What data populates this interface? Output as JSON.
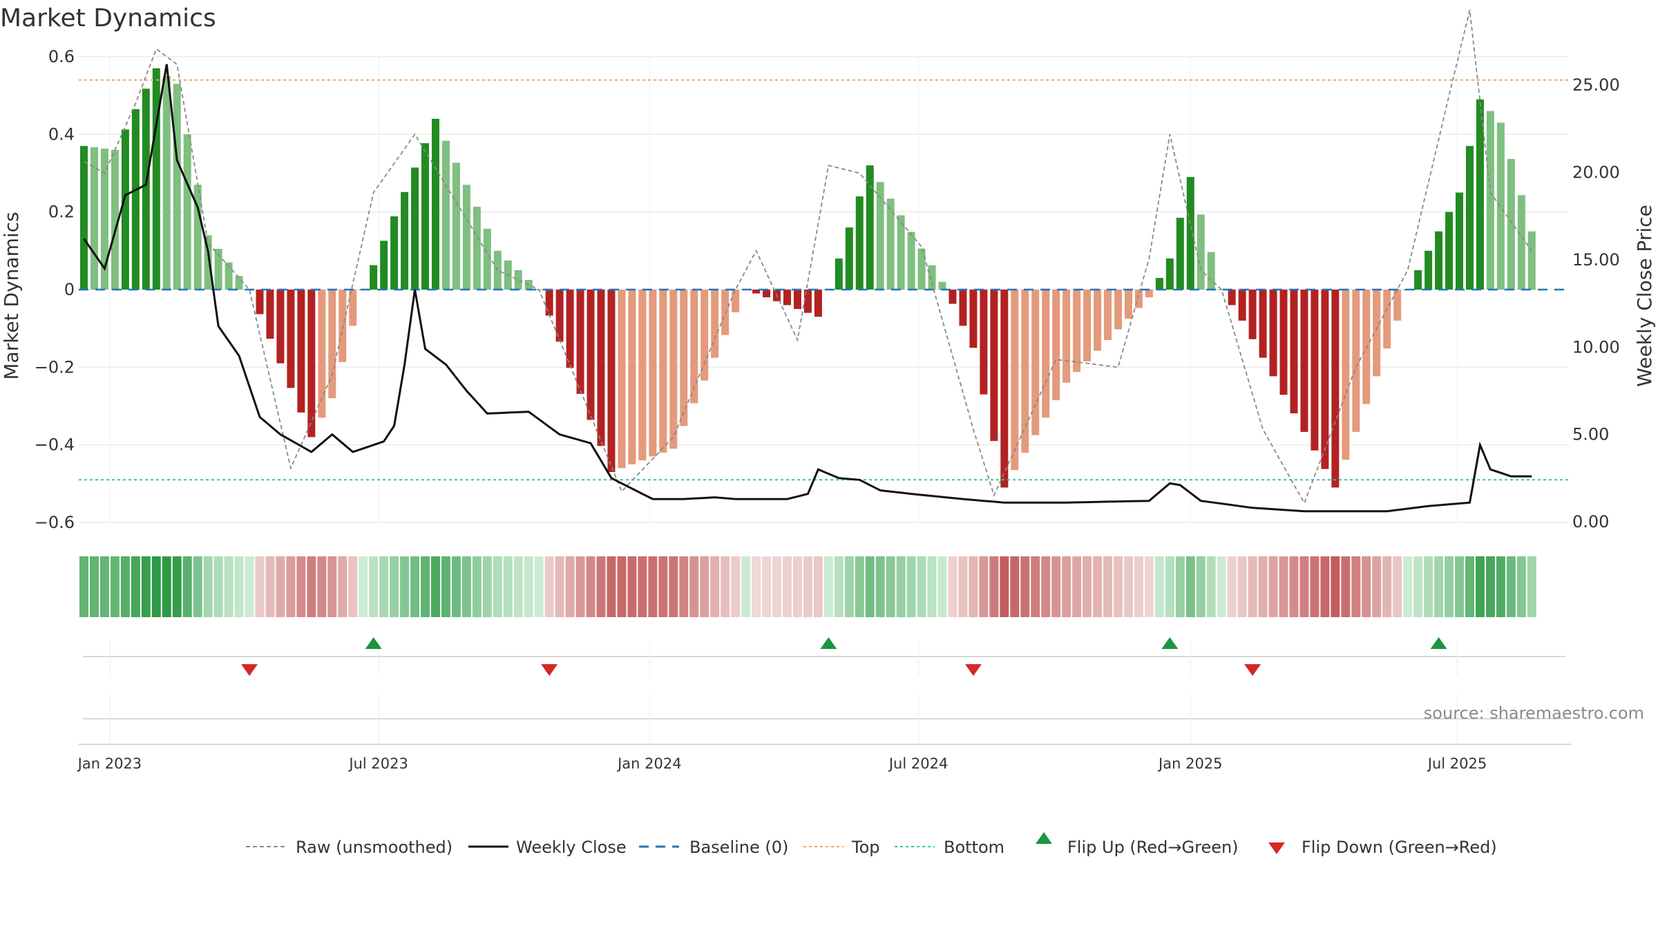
{
  "chart_data": {
    "type": "bar",
    "title": "Market Dynamics",
    "ylabel_left": "Market Dynamics",
    "ylabel_right": "Weekly Close Price",
    "ylim_left": [
      -0.6,
      0.6
    ],
    "ylim_right": [
      0,
      27.5
    ],
    "yticks_left": [
      0.6,
      0.4,
      0.2,
      0,
      -0.2,
      -0.4,
      -0.6
    ],
    "yticks_left_labels": [
      "0.6",
      "0.4",
      "0.2",
      "0",
      "−0.2",
      "−0.4",
      "−0.6"
    ],
    "yticks_right": [
      25,
      20,
      15,
      10,
      5,
      0
    ],
    "yticks_right_labels": [
      "25.00",
      "20.00",
      "15.00",
      "10.00",
      "5.00",
      "0.00"
    ],
    "x_ticks": [
      {
        "week": 2.5,
        "label": "Jan 2023"
      },
      {
        "week": 28.5,
        "label": "Jul 2023"
      },
      {
        "week": 54.7,
        "label": "Jan 2024"
      },
      {
        "week": 80.7,
        "label": "Jul 2024"
      },
      {
        "week": 107,
        "label": "Jan 2025"
      },
      {
        "week": 132.8,
        "label": "Jul 2025"
      }
    ],
    "top_level": 0.54,
    "bottom_level": -0.49,
    "baseline": 0,
    "anchors_smoothed": [
      [
        0,
        0.37
      ],
      [
        3,
        0.36
      ],
      [
        7,
        0.57
      ],
      [
        9,
        0.53
      ],
      [
        12,
        0.14
      ],
      [
        16,
        0
      ],
      [
        22,
        -0.38
      ],
      [
        24,
        -0.28
      ],
      [
        27,
        0
      ],
      [
        34,
        0.44
      ],
      [
        40,
        0.1
      ],
      [
        44,
        0
      ],
      [
        51,
        -0.47
      ],
      [
        57,
        -0.41
      ],
      [
        64,
        0
      ],
      [
        71,
        -0.07
      ],
      [
        72,
        0
      ],
      [
        76,
        0.32
      ],
      [
        83,
        0.02
      ],
      [
        86,
        -0.15
      ],
      [
        89,
        -0.51
      ],
      [
        95,
        -0.24
      ],
      [
        103,
        -0.02
      ],
      [
        105,
        0.08
      ],
      [
        107,
        0.29
      ],
      [
        110,
        0
      ],
      [
        112,
        -0.08
      ],
      [
        121,
        -0.51
      ],
      [
        127,
        -0.08
      ],
      [
        128,
        0
      ],
      [
        133,
        0.25
      ],
      [
        135,
        0.49
      ],
      [
        137,
        0.43
      ],
      [
        140,
        0.15
      ]
    ],
    "anchors_raw": [
      [
        0,
        0.33
      ],
      [
        2,
        0.3
      ],
      [
        5,
        0.48
      ],
      [
        7,
        0.62
      ],
      [
        9,
        0.58
      ],
      [
        12,
        0.12
      ],
      [
        16,
        0
      ],
      [
        20,
        -0.46
      ],
      [
        24,
        -0.22
      ],
      [
        28,
        0.25
      ],
      [
        32,
        0.4
      ],
      [
        40,
        0.05
      ],
      [
        44,
        0
      ],
      [
        52,
        -0.52
      ],
      [
        57,
        -0.38
      ],
      [
        63,
        0
      ],
      [
        65,
        0.1
      ],
      [
        69,
        -0.13
      ],
      [
        72,
        0.32
      ],
      [
        75,
        0.3
      ],
      [
        81,
        0.11
      ],
      [
        86,
        -0.36
      ],
      [
        88,
        -0.53
      ],
      [
        94,
        -0.18
      ],
      [
        100,
        -0.2
      ],
      [
        103,
        0.08
      ],
      [
        105,
        0.4
      ],
      [
        108,
        0.05
      ],
      [
        110,
        0
      ],
      [
        114,
        -0.36
      ],
      [
        118,
        -0.55
      ],
      [
        123,
        -0.2
      ],
      [
        128,
        0.05
      ],
      [
        132,
        0.5
      ],
      [
        134,
        0.72
      ],
      [
        136,
        0.25
      ],
      [
        140,
        0.1
      ]
    ],
    "anchors_close": [
      [
        0,
        16.2
      ],
      [
        2,
        14.5
      ],
      [
        4,
        18.7
      ],
      [
        6,
        19.3
      ],
      [
        8,
        26.2
      ],
      [
        9,
        20.7
      ],
      [
        11,
        18.0
      ],
      [
        12,
        15.5
      ],
      [
        13,
        11.2
      ],
      [
        15,
        9.5
      ],
      [
        17,
        6.0
      ],
      [
        19,
        5.0
      ],
      [
        22,
        4.0
      ],
      [
        24,
        5.0
      ],
      [
        26,
        4.0
      ],
      [
        29,
        4.6
      ],
      [
        30,
        5.5
      ],
      [
        31,
        9.0
      ],
      [
        32,
        13.3
      ],
      [
        33,
        9.9
      ],
      [
        35,
        9.0
      ],
      [
        37,
        7.5
      ],
      [
        39,
        6.2
      ],
      [
        43,
        6.3
      ],
      [
        46,
        5.0
      ],
      [
        49,
        4.5
      ],
      [
        51,
        2.5
      ],
      [
        55,
        1.3
      ],
      [
        58,
        1.3
      ],
      [
        61,
        1.4
      ],
      [
        63,
        1.3
      ],
      [
        68,
        1.3
      ],
      [
        70,
        1.6
      ],
      [
        71,
        3.0
      ],
      [
        73,
        2.5
      ],
      [
        75,
        2.4
      ],
      [
        77,
        1.8
      ],
      [
        80,
        1.6
      ],
      [
        85,
        1.3
      ],
      [
        89,
        1.1
      ],
      [
        95,
        1.1
      ],
      [
        103,
        1.2
      ],
      [
        105,
        2.2
      ],
      [
        106,
        2.1
      ],
      [
        108,
        1.2
      ],
      [
        113,
        0.8
      ],
      [
        118,
        0.6
      ],
      [
        122,
        0.6
      ],
      [
        126,
        0.6
      ],
      [
        130,
        0.9
      ],
      [
        134,
        1.1
      ],
      [
        135,
        4.4
      ],
      [
        136,
        3.0
      ],
      [
        138,
        2.6
      ],
      [
        140,
        2.6
      ]
    ],
    "series": [
      {
        "name": "Market Dynamics (smoothed)",
        "kind": "bar",
        "weeks": 141
      },
      {
        "name": "Raw (unsmoothed)",
        "kind": "line"
      },
      {
        "name": "Weekly Close",
        "kind": "line"
      }
    ],
    "flips_up_weeks": [
      28,
      72,
      105,
      131
    ],
    "flips_down_weeks": [
      16,
      45,
      86,
      113
    ],
    "legend": [
      {
        "label": "Raw (unsmoothed)",
        "style": "dash-gray"
      },
      {
        "label": "Weekly Close",
        "style": "solid-black"
      },
      {
        "label": "Baseline (0)",
        "style": "dash-blue"
      },
      {
        "label": "Top",
        "style": "dot-orange"
      },
      {
        "label": "Bottom",
        "style": "dot-teal"
      },
      {
        "label": "Flip Up (Red→Green)",
        "style": "tri-up"
      },
      {
        "label": "Flip Down (Green→Red)",
        "style": "tri-down"
      }
    ],
    "legend_position": "bottom-center",
    "source": "source: sharemaestro.com"
  },
  "colors": {
    "green_strong": "#228b22",
    "green_light": "#7fbf7f",
    "red_strong": "#b22222",
    "red_light": "#e49a7c",
    "raw_line": "#888888",
    "close_line": "#111111",
    "baseline": "#1f77b4",
    "top": "#f4a261",
    "bottom": "#2ec4b6",
    "flip_up": "#1a9641",
    "flip_down": "#d62728",
    "grid": "#ebebeb"
  }
}
